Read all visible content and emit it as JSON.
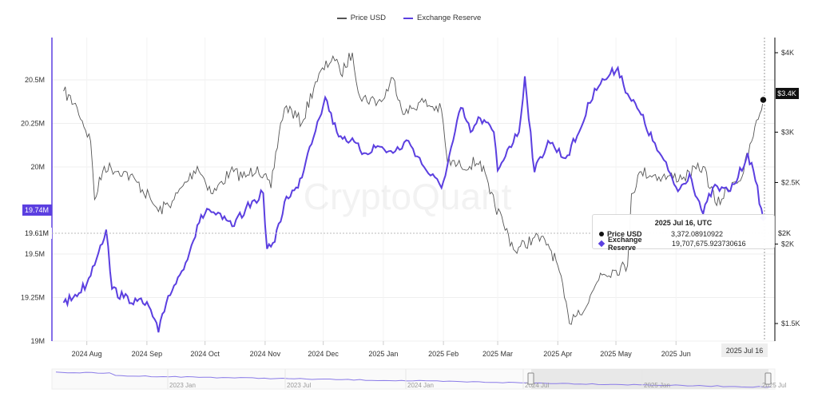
{
  "legend": [
    {
      "name": "Price USD",
      "color": "#555555"
    },
    {
      "name": "Exchange Reserve",
      "color": "#5b3fe0"
    }
  ],
  "watermark": "CryptoQuant",
  "tooltip": {
    "date": "2025 Jul 16, UTC",
    "rows": [
      {
        "label": "Price USD",
        "value": "3,372.08910922"
      },
      {
        "label": "Exchange Reserve",
        "value": "19,707,675.923730616"
      }
    ]
  },
  "left_tags": {
    "current": "19.74M",
    "crosshair": "19.61M"
  },
  "right_tags": {
    "current": "$3.4K",
    "crosshair": "$2K"
  },
  "x_hover_label": "2025 Jul 16",
  "navigator": {
    "labels": [
      "2023 Jan",
      "2023 Jul",
      "2024 Jan",
      "2024 Jul",
      "2025 Jan",
      "2025 Jul"
    ]
  },
  "chart_data": {
    "type": "line",
    "x_ticks": [
      "2024 Aug",
      "2024 Sep",
      "2024 Oct",
      "2024 Nov",
      "2024 Dec",
      "2025 Jan",
      "2025 Feb",
      "2025 Mar",
      "2025 Apr",
      "2025 May",
      "2025 Jun"
    ],
    "y_left": {
      "ticks": [
        "19M",
        "19.25M",
        "19.5M",
        "20M",
        "20.25M",
        "20.5M"
      ],
      "range": [
        19000000,
        20700000
      ]
    },
    "y_right": {
      "ticks": [
        "$1.5K",
        "$2K",
        "$2.5K",
        "$3K",
        "$4K"
      ],
      "log": true
    },
    "series": [
      {
        "name": "Price USD",
        "axis": "right",
        "color": "#555555",
        "points": [
          [
            "2024-07-20",
            3480
          ],
          [
            "2024-07-27",
            3280
          ],
          [
            "2024-08-03",
            2900
          ],
          [
            "2024-08-05",
            2350
          ],
          [
            "2024-08-10",
            2650
          ],
          [
            "2024-08-20",
            2600
          ],
          [
            "2024-08-27",
            2500
          ],
          [
            "2024-09-03",
            2350
          ],
          [
            "2024-09-07",
            2250
          ],
          [
            "2024-09-15",
            2350
          ],
          [
            "2024-09-27",
            2650
          ],
          [
            "2024-10-05",
            2400
          ],
          [
            "2024-10-14",
            2600
          ],
          [
            "2024-10-22",
            2550
          ],
          [
            "2024-10-28",
            2650
          ],
          [
            "2024-11-04",
            2450
          ],
          [
            "2024-11-09",
            3100
          ],
          [
            "2024-11-12",
            3300
          ],
          [
            "2024-11-20",
            3100
          ],
          [
            "2024-11-27",
            3600
          ],
          [
            "2024-12-06",
            3950
          ],
          [
            "2024-12-10",
            3700
          ],
          [
            "2024-12-16",
            4000
          ],
          [
            "2024-12-20",
            3400
          ],
          [
            "2024-12-31",
            3350
          ],
          [
            "2025-01-06",
            3650
          ],
          [
            "2025-01-12",
            3200
          ],
          [
            "2025-01-20",
            3350
          ],
          [
            "2025-01-31",
            3250
          ],
          [
            "2025-02-03",
            2700
          ],
          [
            "2025-02-10",
            2650
          ],
          [
            "2025-02-20",
            2700
          ],
          [
            "2025-02-25",
            2400
          ],
          [
            "2025-03-04",
            2150
          ],
          [
            "2025-03-10",
            1950
          ],
          [
            "2025-03-20",
            2050
          ],
          [
            "2025-03-27",
            2000
          ],
          [
            "2025-04-01",
            1850
          ],
          [
            "2025-04-07",
            1500
          ],
          [
            "2025-04-09",
            1550
          ],
          [
            "2025-04-16",
            1600
          ],
          [
            "2025-04-23",
            1800
          ],
          [
            "2025-05-01",
            1820
          ],
          [
            "2025-05-07",
            1850
          ],
          [
            "2025-05-09",
            2400
          ],
          [
            "2025-05-14",
            2600
          ],
          [
            "2025-05-25",
            2550
          ],
          [
            "2025-06-05",
            2550
          ],
          [
            "2025-06-15",
            2650
          ],
          [
            "2025-06-22",
            2300
          ],
          [
            "2025-06-30",
            2500
          ],
          [
            "2025-07-05",
            2550
          ],
          [
            "2025-07-10",
            2900
          ],
          [
            "2025-07-16",
            3372
          ]
        ]
      },
      {
        "name": "Exchange Reserve",
        "axis": "left",
        "color": "#5b3fe0",
        "points": [
          [
            "2024-07-20",
            19220000
          ],
          [
            "2024-07-25",
            19250000
          ],
          [
            "2024-08-01",
            19330000
          ],
          [
            "2024-08-08",
            19550000
          ],
          [
            "2024-08-11",
            19640000
          ],
          [
            "2024-08-14",
            19300000
          ],
          [
            "2024-08-20",
            19250000
          ],
          [
            "2024-08-27",
            19230000
          ],
          [
            "2024-09-02",
            19200000
          ],
          [
            "2024-09-07",
            19050000
          ],
          [
            "2024-09-12",
            19260000
          ],
          [
            "2024-09-18",
            19380000
          ],
          [
            "2024-09-24",
            19550000
          ],
          [
            "2024-09-28",
            19680000
          ],
          [
            "2024-10-02",
            19760000
          ],
          [
            "2024-10-10",
            19700000
          ],
          [
            "2024-10-16",
            19660000
          ],
          [
            "2024-10-22",
            19760000
          ],
          [
            "2024-10-31",
            19850000
          ],
          [
            "2024-11-02",
            19530000
          ],
          [
            "2024-11-06",
            19570000
          ],
          [
            "2024-11-12",
            19830000
          ],
          [
            "2024-11-18",
            19880000
          ],
          [
            "2024-11-23",
            20080000
          ],
          [
            "2024-11-28",
            20260000
          ],
          [
            "2024-12-02",
            20400000
          ],
          [
            "2024-12-08",
            20200000
          ],
          [
            "2024-12-15",
            20150000
          ],
          [
            "2024-12-22",
            20080000
          ],
          [
            "2024-12-29",
            20120000
          ],
          [
            "2025-01-06",
            20080000
          ],
          [
            "2025-01-14",
            20150000
          ],
          [
            "2025-01-22",
            20000000
          ],
          [
            "2025-01-31",
            19880000
          ],
          [
            "2025-02-06",
            20150000
          ],
          [
            "2025-02-10",
            20340000
          ],
          [
            "2025-02-15",
            20200000
          ],
          [
            "2025-02-20",
            20280000
          ],
          [
            "2025-02-27",
            20200000
          ],
          [
            "2025-03-01",
            19980000
          ],
          [
            "2025-03-06",
            20100000
          ],
          [
            "2025-03-12",
            20200000
          ],
          [
            "2025-03-15",
            20520000
          ],
          [
            "2025-03-20",
            19970000
          ],
          [
            "2025-03-27",
            20150000
          ],
          [
            "2025-04-05",
            20050000
          ],
          [
            "2025-04-12",
            20200000
          ],
          [
            "2025-04-20",
            20450000
          ],
          [
            "2025-04-25",
            20500000
          ],
          [
            "2025-05-02",
            20570000
          ],
          [
            "2025-05-07",
            20420000
          ],
          [
            "2025-05-14",
            20300000
          ],
          [
            "2025-05-20",
            20150000
          ],
          [
            "2025-05-28",
            19980000
          ],
          [
            "2025-06-02",
            19860000
          ],
          [
            "2025-06-08",
            19960000
          ],
          [
            "2025-06-15",
            19730000
          ],
          [
            "2025-06-20",
            19880000
          ],
          [
            "2025-06-28",
            19860000
          ],
          [
            "2025-07-03",
            19940000
          ],
          [
            "2025-07-08",
            20080000
          ],
          [
            "2025-07-12",
            19920000
          ],
          [
            "2025-07-16",
            19707676
          ]
        ]
      }
    ]
  }
}
